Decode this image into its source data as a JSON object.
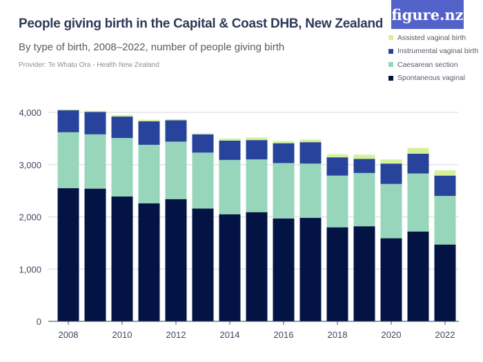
{
  "chart_data": {
    "type": "bar",
    "stacked": true,
    "title": "People giving birth in the Capital & Coast DHB, New Zealand",
    "subtitle": "By type of birth, 2008–2022, number of people giving birth",
    "provider": "Provider: Te Whatu Ora - Health New Zealand",
    "categories": [
      "2008",
      "2009",
      "2010",
      "2011",
      "2012",
      "2013",
      "2014",
      "2015",
      "2016",
      "2017",
      "2018",
      "2019",
      "2020",
      "2021",
      "2022"
    ],
    "x_tick_labels": [
      "2008",
      "2010",
      "2012",
      "2014",
      "2016",
      "2018",
      "2020",
      "2022"
    ],
    "y_tick_labels": [
      "0",
      "1,000",
      "2,000",
      "3,000",
      "4,000"
    ],
    "ylim": [
      0,
      4000
    ],
    "grid": true,
    "legend_position": "top-right",
    "series": [
      {
        "name": "Spontaneous vaginal",
        "color": "#031444",
        "values": [
          2550,
          2540,
          2390,
          2260,
          2340,
          2160,
          2050,
          2090,
          1970,
          1980,
          1800,
          1820,
          1590,
          1720,
          1470
        ]
      },
      {
        "name": "Caesarean section",
        "color": "#97d6bb",
        "values": [
          1070,
          1040,
          1120,
          1120,
          1100,
          1070,
          1040,
          1010,
          1060,
          1040,
          990,
          1020,
          1040,
          1110,
          930
        ]
      },
      {
        "name": "Instrumental vaginal birth",
        "color": "#27439c",
        "values": [
          420,
          430,
          410,
          450,
          410,
          350,
          370,
          370,
          380,
          410,
          350,
          270,
          390,
          380,
          390
        ]
      },
      {
        "name": "Assisted vaginal birth",
        "color": "#d4f19a",
        "values": [
          20,
          20,
          30,
          30,
          20,
          20,
          40,
          50,
          40,
          50,
          60,
          80,
          80,
          110,
          100
        ]
      }
    ],
    "legend_order": [
      "Assisted vaginal birth",
      "Instrumental vaginal birth",
      "Caesarean section",
      "Spontaneous vaginal"
    ]
  },
  "logo_text": "figure.nz"
}
